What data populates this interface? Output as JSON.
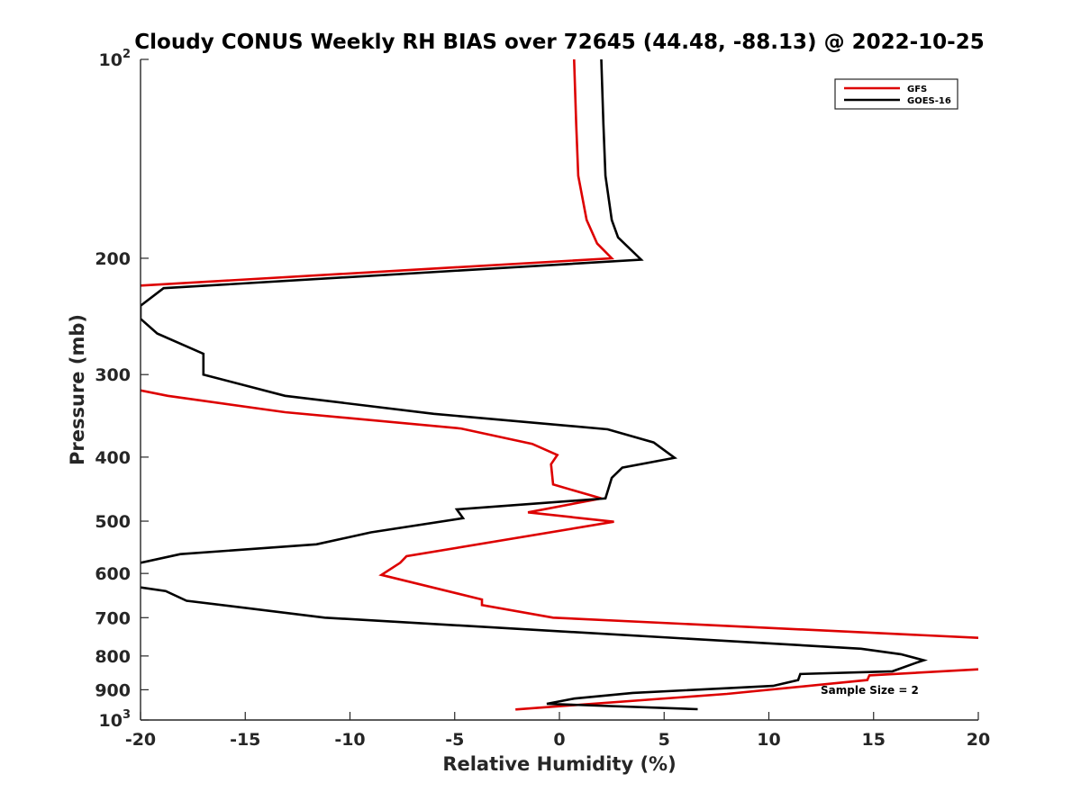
{
  "chart_data": {
    "type": "line",
    "title": "Cloudy CONUS Weekly RH BIAS over 72645 (44.48, -88.13) @ 2022-10-25",
    "xlabel": "Relative Humidity (%)",
    "ylabel": "Pressure (mb)",
    "xlim": [
      -20,
      20
    ],
    "ylim": [
      100,
      1000
    ],
    "y_scale": "log",
    "y_reversed": true,
    "grid": false,
    "legend_position": "top-right",
    "x_ticks": [
      "-20",
      "-15",
      "-10",
      "-5",
      "0",
      "5",
      "10",
      "15",
      "20"
    ],
    "x_tick_values": [
      -20,
      -15,
      -10,
      -5,
      0,
      5,
      10,
      15,
      20
    ],
    "y_ticks": [
      {
        "value": 100,
        "base": "10",
        "exp": "2"
      },
      {
        "value": 200,
        "base": "200",
        "exp": ""
      },
      {
        "value": 300,
        "base": "300",
        "exp": ""
      },
      {
        "value": 400,
        "base": "400",
        "exp": ""
      },
      {
        "value": 500,
        "base": "500",
        "exp": ""
      },
      {
        "value": 600,
        "base": "600",
        "exp": ""
      },
      {
        "value": 700,
        "base": "700",
        "exp": ""
      },
      {
        "value": 800,
        "base": "800",
        "exp": ""
      },
      {
        "value": 900,
        "base": "900",
        "exp": ""
      },
      {
        "value": 1000,
        "base": "10",
        "exp": "3"
      }
    ],
    "annotation": "Sample Size = 2",
    "series": [
      {
        "name": "GFS",
        "color": "#dd0000",
        "points": [
          [
            0.7,
            100
          ],
          [
            0.8,
            125
          ],
          [
            0.9,
            150
          ],
          [
            1.3,
            175
          ],
          [
            1.8,
            190
          ],
          [
            2.5,
            200
          ],
          [
            -20,
            220
          ],
          [
            null,
            240
          ],
          [
            -20,
            317
          ],
          [
            -18.7,
            323
          ],
          [
            -13.1,
            342
          ],
          [
            -4.7,
            362
          ],
          [
            -1.3,
            382
          ],
          [
            -0.1,
            397
          ],
          [
            -0.4,
            410
          ],
          [
            -0.3,
            440
          ],
          [
            2.0,
            462
          ],
          [
            -1.5,
            485
          ],
          [
            2.6,
            501
          ],
          [
            -7.3,
            565
          ],
          [
            -7.6,
            578
          ],
          [
            -8.5,
            603
          ],
          [
            -3.7,
            657
          ],
          [
            -3.7,
            670
          ],
          [
            -0.3,
            700
          ],
          [
            20,
            751
          ],
          [
            null,
            800
          ],
          [
            20,
            838
          ],
          [
            14.8,
            856
          ],
          [
            14.7,
            870
          ],
          [
            8.0,
            913
          ],
          [
            -2.1,
            964
          ]
        ]
      },
      {
        "name": "GOES-16",
        "color": "#000000",
        "points": [
          [
            2.0,
            100
          ],
          [
            2.1,
            125
          ],
          [
            2.2,
            150
          ],
          [
            2.5,
            175
          ],
          [
            2.8,
            186
          ],
          [
            3.9,
            201
          ],
          [
            -18.9,
            222
          ],
          [
            -20,
            236
          ],
          [
            -20,
            247
          ],
          [
            -19.2,
            260
          ],
          [
            -17.0,
            279
          ],
          [
            -17.0,
            300
          ],
          [
            -13.1,
            323
          ],
          [
            -6.0,
            344
          ],
          [
            2.3,
            363
          ],
          [
            4.5,
            380
          ],
          [
            5.5,
            401
          ],
          [
            3.0,
            415
          ],
          [
            2.5,
            430
          ],
          [
            2.2,
            462
          ],
          [
            -4.9,
            480
          ],
          [
            -4.6,
            495
          ],
          [
            -9.0,
            520
          ],
          [
            -11.6,
            542
          ],
          [
            -18.1,
            561
          ],
          [
            -20,
            578
          ],
          [
            null,
            600
          ],
          [
            -20,
            630
          ],
          [
            -18.8,
            638
          ],
          [
            -17.8,
            660
          ],
          [
            -11.2,
            700
          ],
          [
            14.4,
            780
          ],
          [
            16.3,
            795
          ],
          [
            17.4,
            812
          ],
          [
            17.0,
            820
          ],
          [
            15.9,
            844
          ],
          [
            11.5,
            852
          ],
          [
            11.4,
            870
          ],
          [
            10.2,
            888
          ],
          [
            3.5,
            910
          ],
          [
            0.7,
            928
          ],
          [
            -0.6,
            945
          ],
          [
            6.6,
            963
          ]
        ]
      }
    ]
  }
}
